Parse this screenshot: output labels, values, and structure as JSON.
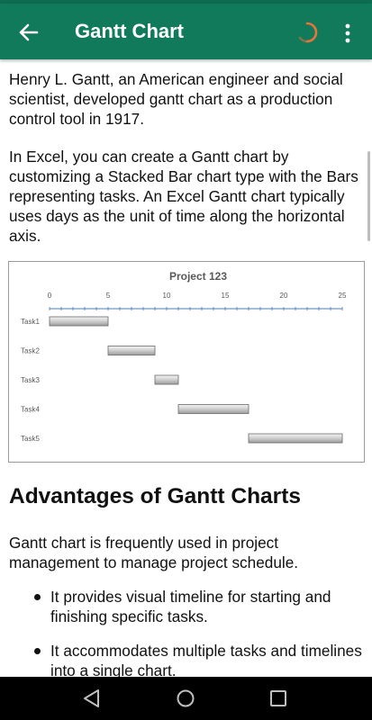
{
  "app_bar": {
    "title": "Gantt Chart",
    "back_icon": "arrow-left-icon",
    "loading_icon": "spinner-icon",
    "menu_icon": "more-vert-icon",
    "color": "#117a5a"
  },
  "content": {
    "paragraph_1": "Henry L. Gantt, an American engineer and social scientist, developed gantt chart as a production control tool in 1917.",
    "paragraph_2": "In Excel, you can create a Gantt chart by customizing a Stacked Bar chart type with the Bars representing tasks. An Excel Gantt chart typically uses days as the unit of time along the horizontal axis.",
    "heading": "Advantages of Gantt Charts",
    "paragraph_3": "Gantt chart is frequently used in project management to manage project schedule.",
    "bullets": [
      "It provides visual timeline for starting and finishing specific tasks.",
      "It accommodates multiple tasks and timelines into a single chart."
    ]
  },
  "chart_data": {
    "type": "bar",
    "title": "Project 123",
    "xlim": [
      0,
      25
    ],
    "x_ticks": [
      0,
      5,
      10,
      15,
      20,
      25
    ],
    "categories": [
      "Task1",
      "Task2",
      "Task3",
      "Task4",
      "Task5"
    ],
    "start": [
      0,
      5,
      9,
      11,
      17
    ],
    "duration": [
      5,
      4,
      2,
      6,
      8
    ],
    "grid": false,
    "legend": "none"
  },
  "nav_bar": {
    "back_icon": "nav-back-icon",
    "home_icon": "nav-home-icon",
    "recents_icon": "nav-recents-icon"
  }
}
